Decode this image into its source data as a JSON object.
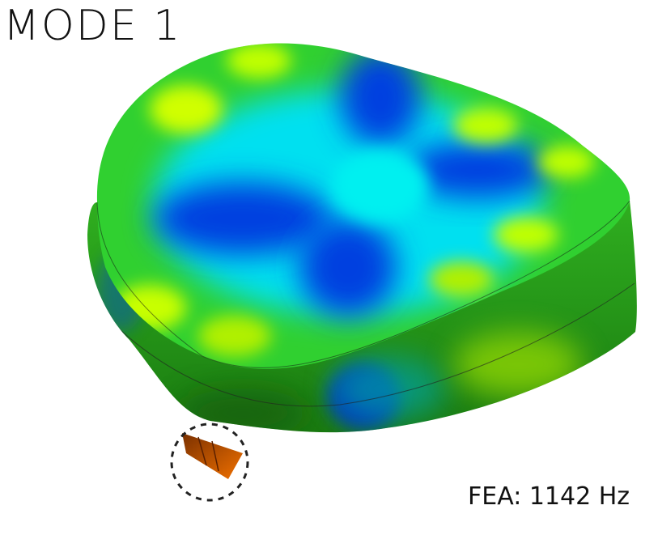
{
  "title": "MODE 1",
  "caption": "FEA: 1142 Hz",
  "colors": {
    "low": "#0030d0",
    "mid_low": "#00f0f0",
    "mid": "#20d020",
    "high": "#d0ff00",
    "hotspot": "#e05a00",
    "highlight_circle": "#222222"
  }
}
